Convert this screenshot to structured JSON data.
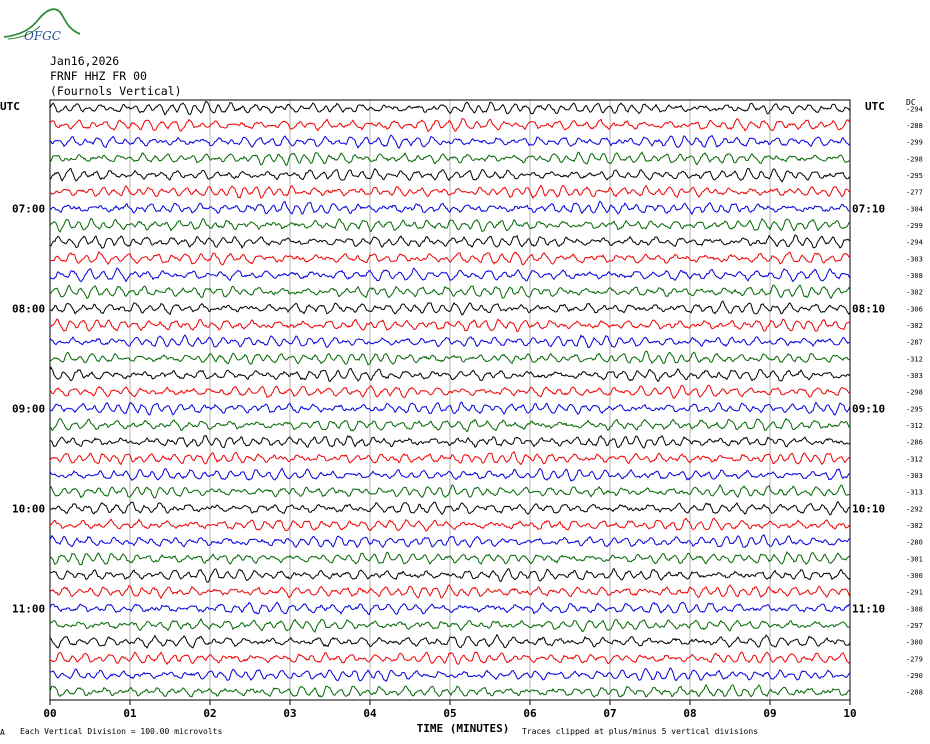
{
  "logo": {
    "text": "OFGC"
  },
  "header": {
    "date": "Jan16,2026",
    "station": "FRNF HHZ FR 00",
    "location": "(Fournols Vertical)"
  },
  "left_utc_label": "UTC",
  "right_utc_label": "UTC",
  "dc_header": "DC",
  "colors": {
    "cycle": [
      "#000000",
      "#ee0000",
      "#0000dd",
      "#006600"
    ],
    "grid": "#b0b0b0"
  },
  "chart_data": {
    "type": "line",
    "title": "",
    "xlabel": "TIME (MINUTES)",
    "x_ticks": [
      "00",
      "01",
      "02",
      "03",
      "04",
      "05",
      "06",
      "07",
      "08",
      "09",
      "10"
    ],
    "xlim": [
      0,
      10
    ],
    "traces_count": 36,
    "left_time_labels": [
      {
        "trace": 6,
        "text": "07:00"
      },
      {
        "trace": 12,
        "text": "08:00"
      },
      {
        "trace": 18,
        "text": "09:00"
      },
      {
        "trace": 24,
        "text": "10:00"
      },
      {
        "trace": 30,
        "text": "11:00"
      }
    ],
    "right_time_labels": [
      {
        "trace": 6,
        "text": "07:10"
      },
      {
        "trace": 12,
        "text": "08:10"
      },
      {
        "trace": 18,
        "text": "09:10"
      },
      {
        "trace": 24,
        "text": "10:10"
      },
      {
        "trace": 30,
        "text": "11:10"
      }
    ],
    "dc_offsets": [
      "-294",
      "-288",
      "-299",
      "-298",
      "-295",
      "-277",
      "-304",
      "-299",
      "-294",
      "-303",
      "-308",
      "-302",
      "-306",
      "-302",
      "-287",
      "-312",
      "-303",
      "-298",
      "-295",
      "-312",
      "-286",
      "-312",
      "-303",
      "-313",
      "-292",
      "-302",
      "-280",
      "-301",
      "-300",
      "-291",
      "-308",
      "-297",
      "-300",
      "-279",
      "-290",
      "-288"
    ]
  },
  "footer": {
    "scale": "Each Vertical Division =  100.00 microvolts",
    "clip": "Traces clipped at plus/minus 5 vertical divisions",
    "mark": "A"
  }
}
